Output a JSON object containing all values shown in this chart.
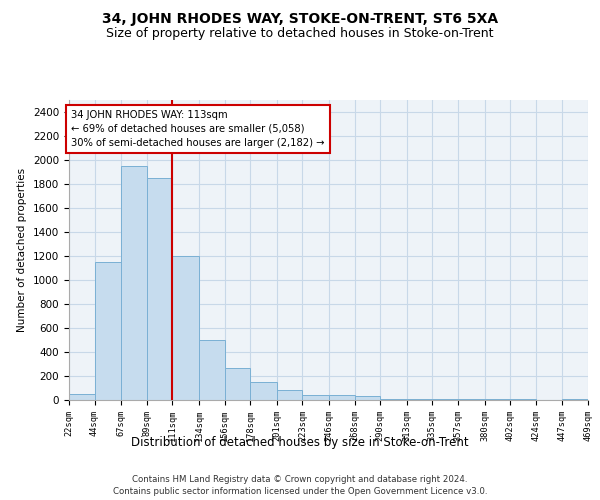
{
  "title": "34, JOHN RHODES WAY, STOKE-ON-TRENT, ST6 5XA",
  "subtitle": "Size of property relative to detached houses in Stoke-on-Trent",
  "xlabel": "Distribution of detached houses by size in Stoke-on-Trent",
  "ylabel": "Number of detached properties",
  "footer_line1": "Contains HM Land Registry data © Crown copyright and database right 2024.",
  "footer_line2": "Contains public sector information licensed under the Open Government Licence v3.0.",
  "annotation_line1": "34 JOHN RHODES WAY: 113sqm",
  "annotation_line2": "← 69% of detached houses are smaller (5,058)",
  "annotation_line3": "30% of semi-detached houses are larger (2,182) →",
  "bar_color": "#c6dcee",
  "bar_edge_color": "#7ab0d4",
  "vline_color": "#cc0000",
  "vline_x": 111,
  "bin_edges": [
    22,
    44,
    67,
    89,
    111,
    134,
    156,
    178,
    201,
    223,
    246,
    268,
    290,
    313,
    335,
    357,
    380,
    402,
    424,
    447,
    469
  ],
  "bar_heights": [
    50,
    1150,
    1950,
    1850,
    1200,
    500,
    270,
    150,
    80,
    40,
    40,
    35,
    10,
    10,
    5,
    5,
    5,
    5,
    0,
    5
  ],
  "ylim": [
    0,
    2500
  ],
  "yticks": [
    0,
    200,
    400,
    600,
    800,
    1000,
    1200,
    1400,
    1600,
    1800,
    2000,
    2200,
    2400
  ],
  "grid_color": "#c8d8e8",
  "bg_color": "#eef3f8",
  "title_fontsize": 10,
  "subtitle_fontsize": 9,
  "annotation_box_color": "#ffffff",
  "annotation_box_edge": "#cc0000"
}
